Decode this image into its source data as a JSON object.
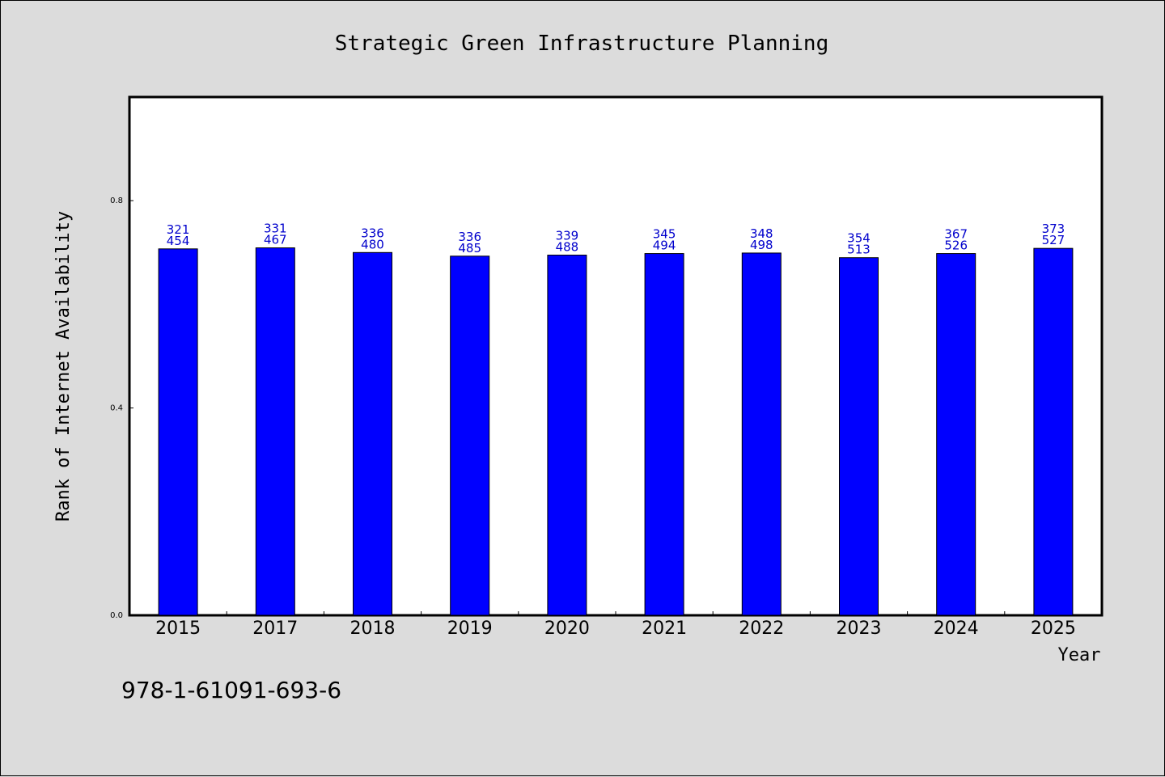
{
  "chart_data": {
    "type": "bar",
    "title": "Strategic Green Infrastructure Planning",
    "xlabel": "Year",
    "ylabel": "Rank of Internet Availability",
    "categories": [
      "2015",
      "2017",
      "2018",
      "2019",
      "2020",
      "2021",
      "2022",
      "2023",
      "2024",
      "2025"
    ],
    "values": [
      0.707,
      0.709,
      0.7,
      0.693,
      0.695,
      0.698,
      0.699,
      0.69,
      0.698,
      0.708
    ],
    "data_labels_top": [
      "321",
      "331",
      "336",
      "336",
      "339",
      "345",
      "348",
      "354",
      "367",
      "373"
    ],
    "data_labels_bottom": [
      "454",
      "467",
      "480",
      "485",
      "488",
      "494",
      "498",
      "513",
      "526",
      "527"
    ],
    "yticks": [
      "0.0",
      "0.4",
      "0.8"
    ],
    "ylim": [
      0,
      1.0
    ],
    "grid": false,
    "bar_color": "#0000ff",
    "label_color": "#0000cc"
  },
  "footer_code": "978-1-61091-693-6"
}
